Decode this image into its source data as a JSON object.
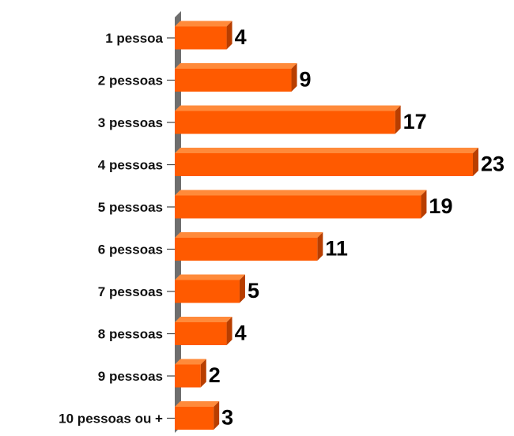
{
  "chart_data": {
    "type": "bar",
    "orientation": "horizontal",
    "style": "3d",
    "categories": [
      "1 pessoa",
      "2 pessoas",
      "3 pessoas",
      "4 pessoas",
      "5 pessoas",
      "6 pessoas",
      "7 pessoas",
      "8 pessoas",
      "9 pessoas",
      "10 pessoas ou +"
    ],
    "values": [
      4,
      9,
      17,
      23,
      19,
      11,
      5,
      4,
      2,
      3
    ],
    "value_labels": [
      "4",
      "9",
      "17",
      "23",
      "19",
      "11",
      "5",
      "4",
      "2",
      "3"
    ],
    "title": "",
    "xlabel": "",
    "ylabel": "",
    "xlim": [
      0,
      23
    ],
    "grid": false,
    "legend": "none",
    "colors": {
      "bar_face": "#FF5A00",
      "bar_top": "#FF8A3A",
      "bar_side": "#B83E00",
      "axis_wall": "#6E6E6E"
    }
  }
}
